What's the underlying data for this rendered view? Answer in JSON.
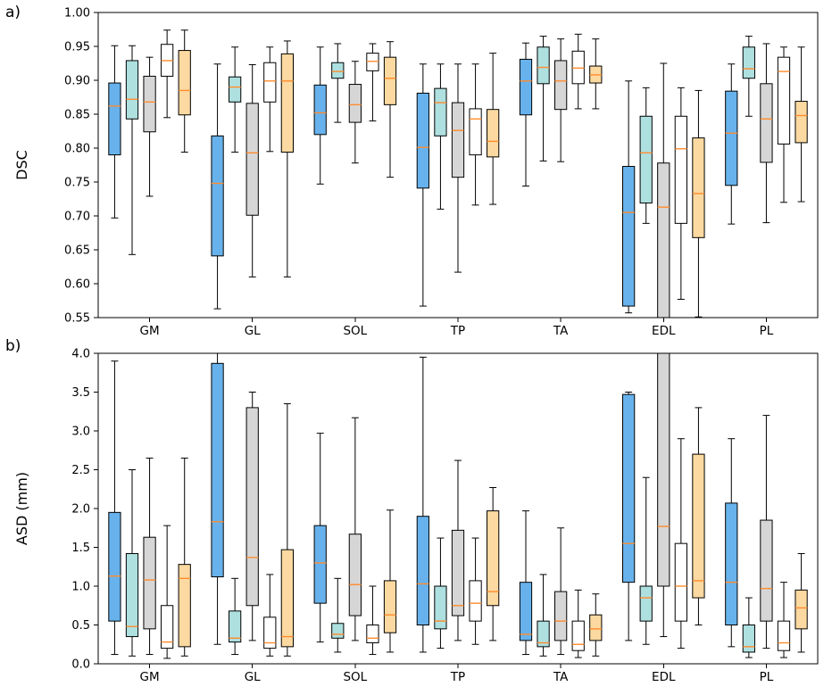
{
  "figure": {
    "background": "#ffffff",
    "axis_color": "#000000"
  },
  "chart_data": [
    {
      "type": "boxplot",
      "name": "dsc-boxplot",
      "panel_label": "a)",
      "title": "",
      "xlabel": "",
      "ylabel": "DSC",
      "ylim": [
        0.55,
        1.0
      ],
      "yticks": [
        0.55,
        0.6,
        0.65,
        0.7,
        0.75,
        0.8,
        0.85,
        0.9,
        0.95,
        1.0
      ],
      "ytick_labels": [
        "0.55",
        "0.60",
        "0.65",
        "0.70",
        "0.75",
        "0.80",
        "0.85",
        "0.90",
        "0.95",
        "1.00"
      ],
      "categories": [
        "GM",
        "GL",
        "SOL",
        "TP",
        "TA",
        "EDL",
        "PL"
      ],
      "grid": false,
      "legend": false,
      "median_color": "#ff8c2e",
      "box_edge_color": "#000000",
      "box_value_order": [
        "whisker_low",
        "q1",
        "median",
        "q3",
        "whisker_high"
      ],
      "series": [
        {
          "name": "blue",
          "color": "#67b2ec",
          "boxes": [
            [
              0.697,
              0.79,
              0.862,
              0.896,
              0.951
            ],
            [
              0.563,
              0.641,
              0.748,
              0.818,
              0.924
            ],
            [
              0.747,
              0.82,
              0.852,
              0.893,
              0.949
            ],
            [
              0.567,
              0.741,
              0.801,
              0.881,
              0.924
            ],
            [
              0.744,
              0.849,
              0.899,
              0.931,
              0.955
            ],
            [
              0.557,
              0.567,
              0.705,
              0.773,
              0.899
            ],
            [
              0.688,
              0.745,
              0.822,
              0.884,
              0.924
            ]
          ]
        },
        {
          "name": "paleturquoise",
          "color": "#aee0e0",
          "boxes": [
            [
              0.643,
              0.843,
              0.872,
              0.929,
              0.951
            ],
            [
              0.794,
              0.868,
              0.89,
              0.905,
              0.949
            ],
            [
              0.838,
              0.903,
              0.913,
              0.926,
              0.954
            ],
            [
              0.71,
              0.818,
              0.867,
              0.888,
              0.924
            ],
            [
              0.781,
              0.895,
              0.919,
              0.949,
              0.965
            ],
            [
              0.689,
              0.719,
              0.793,
              0.847,
              0.889
            ],
            [
              0.847,
              0.903,
              0.917,
              0.949,
              0.965
            ]
          ]
        },
        {
          "name": "gray",
          "color": "#d6d6d6",
          "boxes": [
            [
              0.729,
              0.824,
              0.868,
              0.906,
              0.934
            ],
            [
              0.61,
              0.701,
              0.793,
              0.866,
              0.923
            ],
            [
              0.778,
              0.838,
              0.864,
              0.894,
              0.928
            ],
            [
              0.617,
              0.757,
              0.826,
              0.867,
              0.924
            ],
            [
              0.78,
              0.857,
              0.899,
              0.929,
              0.961
            ],
            [
              0.545,
              0.545,
              0.713,
              0.778,
              0.925
            ],
            [
              0.69,
              0.779,
              0.843,
              0.895,
              0.954
            ]
          ]
        },
        {
          "name": "white",
          "color": "#ffffff",
          "boxes": [
            [
              0.845,
              0.906,
              0.929,
              0.953,
              0.974
            ],
            [
              0.795,
              0.868,
              0.899,
              0.926,
              0.949
            ],
            [
              0.84,
              0.914,
              0.928,
              0.94,
              0.954
            ],
            [
              0.716,
              0.79,
              0.843,
              0.858,
              0.924
            ],
            [
              0.858,
              0.895,
              0.918,
              0.943,
              0.968
            ],
            [
              0.577,
              0.689,
              0.799,
              0.847,
              0.889
            ],
            [
              0.72,
              0.806,
              0.913,
              0.934,
              0.949
            ]
          ]
        },
        {
          "name": "orange",
          "color": "#fbd9a0",
          "boxes": [
            [
              0.794,
              0.849,
              0.885,
              0.944,
              0.974
            ],
            [
              0.61,
              0.794,
              0.899,
              0.939,
              0.958
            ],
            [
              0.757,
              0.864,
              0.903,
              0.934,
              0.957
            ],
            [
              0.717,
              0.787,
              0.81,
              0.857,
              0.94
            ],
            [
              0.858,
              0.896,
              0.908,
              0.921,
              0.961
            ],
            [
              0.551,
              0.668,
              0.733,
              0.815,
              0.885
            ],
            [
              0.721,
              0.808,
              0.848,
              0.869,
              0.949
            ]
          ]
        }
      ]
    },
    {
      "type": "boxplot",
      "name": "asd-boxplot",
      "panel_label": "b)",
      "title": "",
      "xlabel": "",
      "ylabel": "ASD (mm)",
      "ylim": [
        0.0,
        4.0
      ],
      "yticks": [
        0.0,
        0.5,
        1.0,
        1.5,
        2.0,
        2.5,
        3.0,
        3.5,
        4.0
      ],
      "ytick_labels": [
        "0.0",
        "0.5",
        "1.0",
        "1.5",
        "2.0",
        "2.5",
        "3.0",
        "3.5",
        "4.0"
      ],
      "categories": [
        "GM",
        "GL",
        "SOL",
        "TP",
        "TA",
        "EDL",
        "PL"
      ],
      "grid": false,
      "legend": false,
      "median_color": "#ff8c2e",
      "box_edge_color": "#000000",
      "box_value_order": [
        "whisker_low",
        "q1",
        "median",
        "q3",
        "whisker_high"
      ],
      "series": [
        {
          "name": "blue",
          "color": "#67b2ec",
          "boxes": [
            [
              0.12,
              0.55,
              1.13,
              1.95,
              3.9
            ],
            [
              0.25,
              1.12,
              1.83,
              3.87,
              4.05
            ],
            [
              0.28,
              0.78,
              1.3,
              1.78,
              2.97
            ],
            [
              0.15,
              0.5,
              1.03,
              1.9,
              3.95
            ],
            [
              0.12,
              0.3,
              0.38,
              1.05,
              1.97
            ],
            [
              0.3,
              1.05,
              1.55,
              3.47,
              3.5
            ],
            [
              0.22,
              0.5,
              1.05,
              2.07,
              2.9
            ]
          ]
        },
        {
          "name": "paleturquoise",
          "color": "#aee0e0",
          "boxes": [
            [
              0.1,
              0.35,
              0.48,
              1.42,
              2.5
            ],
            [
              0.12,
              0.28,
              0.33,
              0.68,
              1.1
            ],
            [
              0.15,
              0.33,
              0.38,
              0.52,
              1.1
            ],
            [
              0.2,
              0.45,
              0.55,
              1.0,
              1.62
            ],
            [
              0.1,
              0.22,
              0.27,
              0.55,
              1.15
            ],
            [
              0.25,
              0.55,
              0.85,
              1.0,
              2.4
            ],
            [
              0.08,
              0.15,
              0.22,
              0.5,
              0.85
            ]
          ]
        },
        {
          "name": "gray",
          "color": "#d6d6d6",
          "boxes": [
            [
              0.12,
              0.45,
              1.08,
              1.63,
              2.65
            ],
            [
              0.3,
              0.75,
              1.37,
              3.3,
              3.5
            ],
            [
              0.3,
              0.62,
              1.02,
              1.67,
              3.17
            ],
            [
              0.3,
              0.62,
              0.75,
              1.72,
              2.62
            ],
            [
              0.12,
              0.3,
              0.55,
              0.93,
              1.75
            ],
            [
              0.35,
              1.0,
              1.77,
              4.05,
              4.05
            ],
            [
              0.2,
              0.55,
              0.97,
              1.85,
              3.2
            ]
          ]
        },
        {
          "name": "white",
          "color": "#ffffff",
          "boxes": [
            [
              0.07,
              0.2,
              0.28,
              0.75,
              1.78
            ],
            [
              0.1,
              0.2,
              0.27,
              0.6,
              1.15
            ],
            [
              0.12,
              0.27,
              0.33,
              0.5,
              1.0
            ],
            [
              0.25,
              0.55,
              0.78,
              1.07,
              1.62
            ],
            [
              0.08,
              0.17,
              0.25,
              0.55,
              0.95
            ],
            [
              0.2,
              0.55,
              1.0,
              1.55,
              2.9
            ],
            [
              0.08,
              0.17,
              0.27,
              0.55,
              1.05
            ]
          ]
        },
        {
          "name": "orange",
          "color": "#fbd9a0",
          "boxes": [
            [
              0.1,
              0.22,
              1.1,
              1.28,
              2.65
            ],
            [
              0.1,
              0.22,
              0.35,
              1.47,
              3.35
            ],
            [
              0.15,
              0.4,
              0.63,
              1.07,
              1.98
            ],
            [
              0.3,
              0.75,
              0.93,
              1.97,
              2.27
            ],
            [
              0.1,
              0.3,
              0.45,
              0.63,
              0.9
            ],
            [
              0.5,
              0.85,
              1.07,
              2.7,
              3.3
            ],
            [
              0.15,
              0.45,
              0.72,
              0.95,
              1.42
            ]
          ]
        }
      ]
    }
  ]
}
